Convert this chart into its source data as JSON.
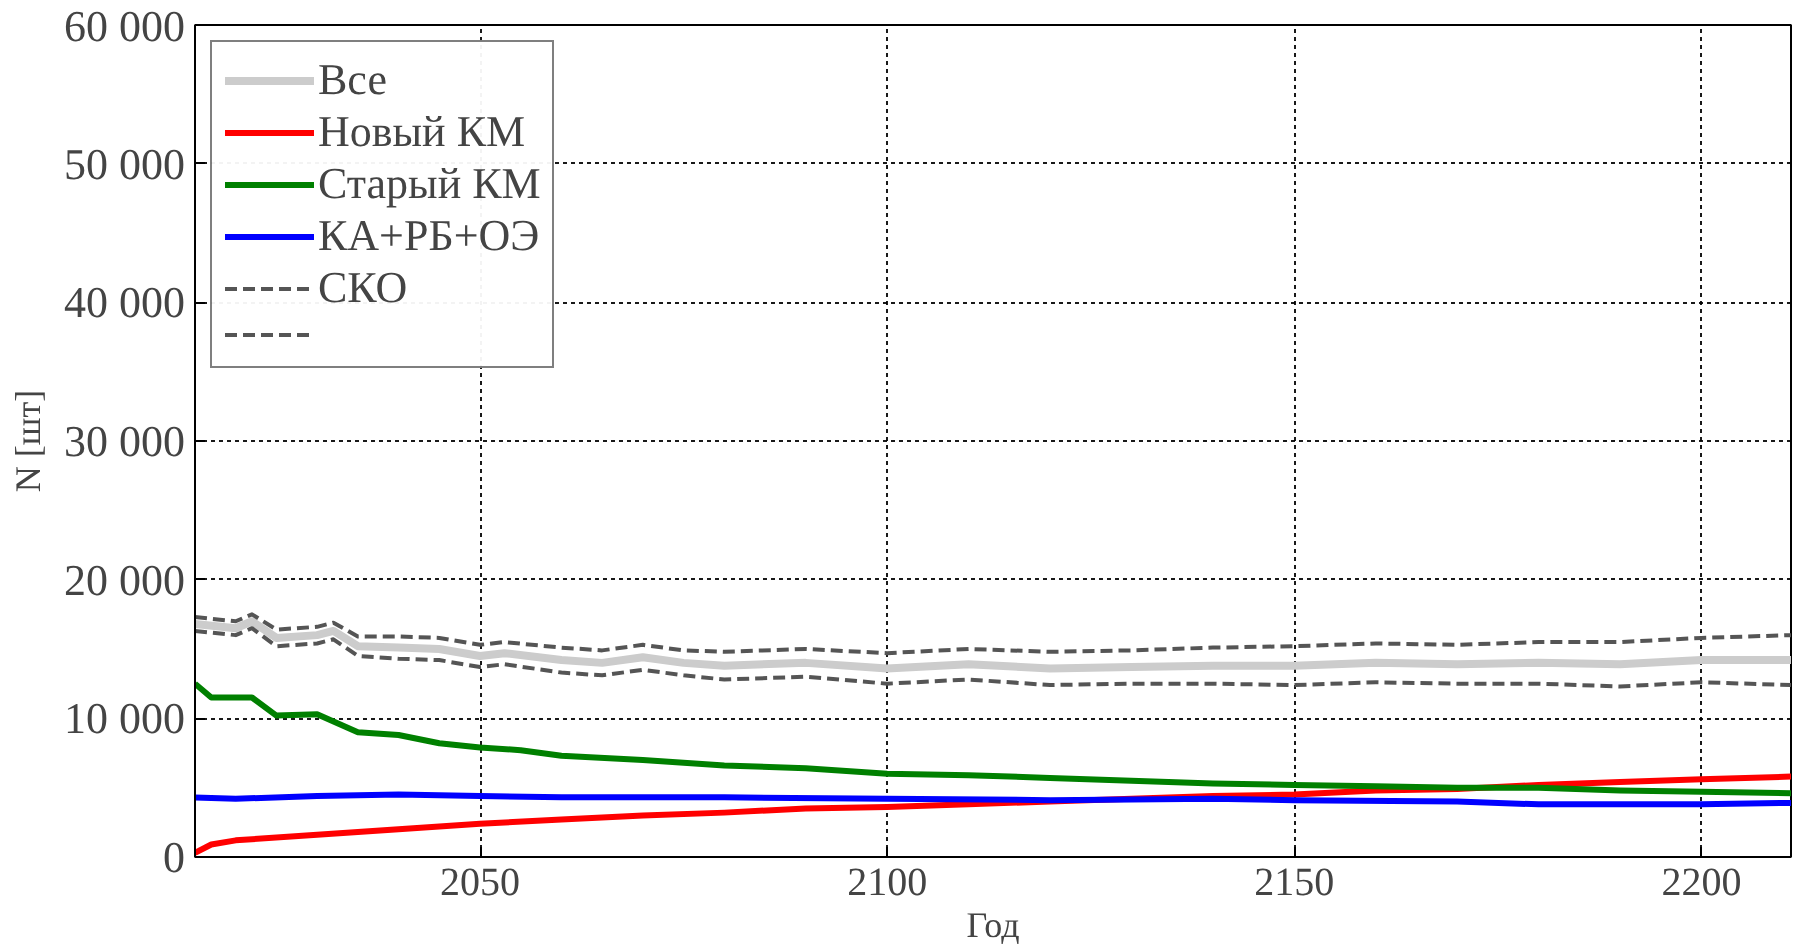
{
  "chart_data": {
    "type": "line",
    "xlabel": "Год",
    "ylabel": "N [шт]",
    "xlim": [
      2015,
      2211
    ],
    "xticks": [
      2050,
      2100,
      2150,
      2200
    ],
    "ylim": [
      0,
      60000
    ],
    "yticks": [
      {
        "value": 0,
        "label": "0"
      },
      {
        "value": 10000,
        "label": "10 000"
      },
      {
        "value": 20000,
        "label": "20 000"
      },
      {
        "value": 30000,
        "label": "30 000"
      },
      {
        "value": 40000,
        "label": "40 000"
      },
      {
        "value": 50000,
        "label": "50 000"
      },
      {
        "value": 60000,
        "label": "60 000"
      }
    ],
    "grid": true,
    "legend": "top left",
    "marker": "none",
    "series": [
      {
        "name": "Все",
        "color": "#cccccc",
        "line_style": "solid",
        "x": [
          2015,
          2020,
          2022,
          2025,
          2030,
          2032,
          2035,
          2040,
          2045,
          2050,
          2053,
          2060,
          2065,
          2070,
          2075,
          2080,
          2090,
          2100,
          2110,
          2120,
          2130,
          2140,
          2150,
          2160,
          2170,
          2180,
          2190,
          2200,
          2211
        ],
        "values": [
          16800,
          16500,
          17000,
          15800,
          16000,
          16300,
          15200,
          15100,
          15000,
          14500,
          14700,
          14200,
          14000,
          14400,
          14000,
          13800,
          14000,
          13600,
          13900,
          13600,
          13700,
          13800,
          13800,
          14000,
          13900,
          14000,
          13900,
          14200,
          14200
        ]
      },
      {
        "name": "Новый КМ",
        "color": "#ff0000",
        "line_style": "solid",
        "x": [
          2015,
          2017,
          2020,
          2030,
          2040,
          2050,
          2060,
          2070,
          2080,
          2090,
          2100,
          2110,
          2120,
          2130,
          2140,
          2150,
          2160,
          2170,
          2180,
          2190,
          2200,
          2211
        ],
        "values": [
          300,
          900,
          1200,
          1600,
          2000,
          2400,
          2700,
          3000,
          3200,
          3500,
          3600,
          3800,
          4000,
          4200,
          4400,
          4500,
          4800,
          4900,
          5200,
          5400,
          5600,
          5800
        ]
      },
      {
        "name": "Старый КМ",
        "color": "#008000",
        "line_style": "solid",
        "x": [
          2015,
          2017,
          2022,
          2025,
          2030,
          2035,
          2040,
          2045,
          2050,
          2055,
          2060,
          2070,
          2080,
          2090,
          2100,
          2110,
          2120,
          2130,
          2140,
          2150,
          2160,
          2170,
          2180,
          2190,
          2200,
          2211
        ],
        "values": [
          12500,
          11500,
          11500,
          10200,
          10300,
          9000,
          8800,
          8200,
          7900,
          7700,
          7300,
          7000,
          6600,
          6400,
          6000,
          5900,
          5700,
          5500,
          5300,
          5200,
          5100,
          5000,
          5000,
          4800,
          4700,
          4600
        ]
      },
      {
        "name": "КА+РБ+ОЭ",
        "color": "#0000ff",
        "line_style": "solid",
        "x": [
          2015,
          2020,
          2030,
          2040,
          2050,
          2060,
          2080,
          2100,
          2120,
          2140,
          2150,
          2170,
          2180,
          2200,
          2211
        ],
        "values": [
          4300,
          4200,
          4400,
          4500,
          4400,
          4300,
          4300,
          4200,
          4100,
          4200,
          4100,
          4000,
          3800,
          3800,
          3900
        ]
      },
      {
        "name": "СКО",
        "color": "#555555",
        "line_style": "dashed",
        "x": [
          2015,
          2020,
          2022,
          2025,
          2030,
          2032,
          2035,
          2040,
          2045,
          2050,
          2053,
          2060,
          2065,
          2070,
          2075,
          2080,
          2090,
          2100,
          2110,
          2120,
          2130,
          2140,
          2150,
          2160,
          2170,
          2180,
          2190,
          2200,
          2211
        ],
        "values": [
          17300,
          17000,
          17500,
          16400,
          16600,
          16900,
          15900,
          15900,
          15800,
          15300,
          15500,
          15100,
          14900,
          15300,
          14900,
          14800,
          15000,
          14700,
          15000,
          14800,
          14900,
          15100,
          15200,
          15400,
          15300,
          15500,
          15500,
          15800,
          16000
        ]
      },
      {
        "color": "#555555",
        "line_style": "dashed",
        "x": [
          2015,
          2020,
          2022,
          2025,
          2030,
          2032,
          2035,
          2040,
          2045,
          2050,
          2053,
          2060,
          2065,
          2070,
          2075,
          2080,
          2090,
          2100,
          2110,
          2120,
          2130,
          2140,
          2150,
          2160,
          2170,
          2180,
          2190,
          2200,
          2211
        ],
        "values": [
          16300,
          16000,
          16500,
          15200,
          15400,
          15700,
          14500,
          14300,
          14200,
          13700,
          13900,
          13300,
          13100,
          13500,
          13100,
          12800,
          13000,
          12500,
          12800,
          12400,
          12500,
          12500,
          12400,
          12600,
          12500,
          12500,
          12300,
          12600,
          12400
        ]
      }
    ]
  }
}
